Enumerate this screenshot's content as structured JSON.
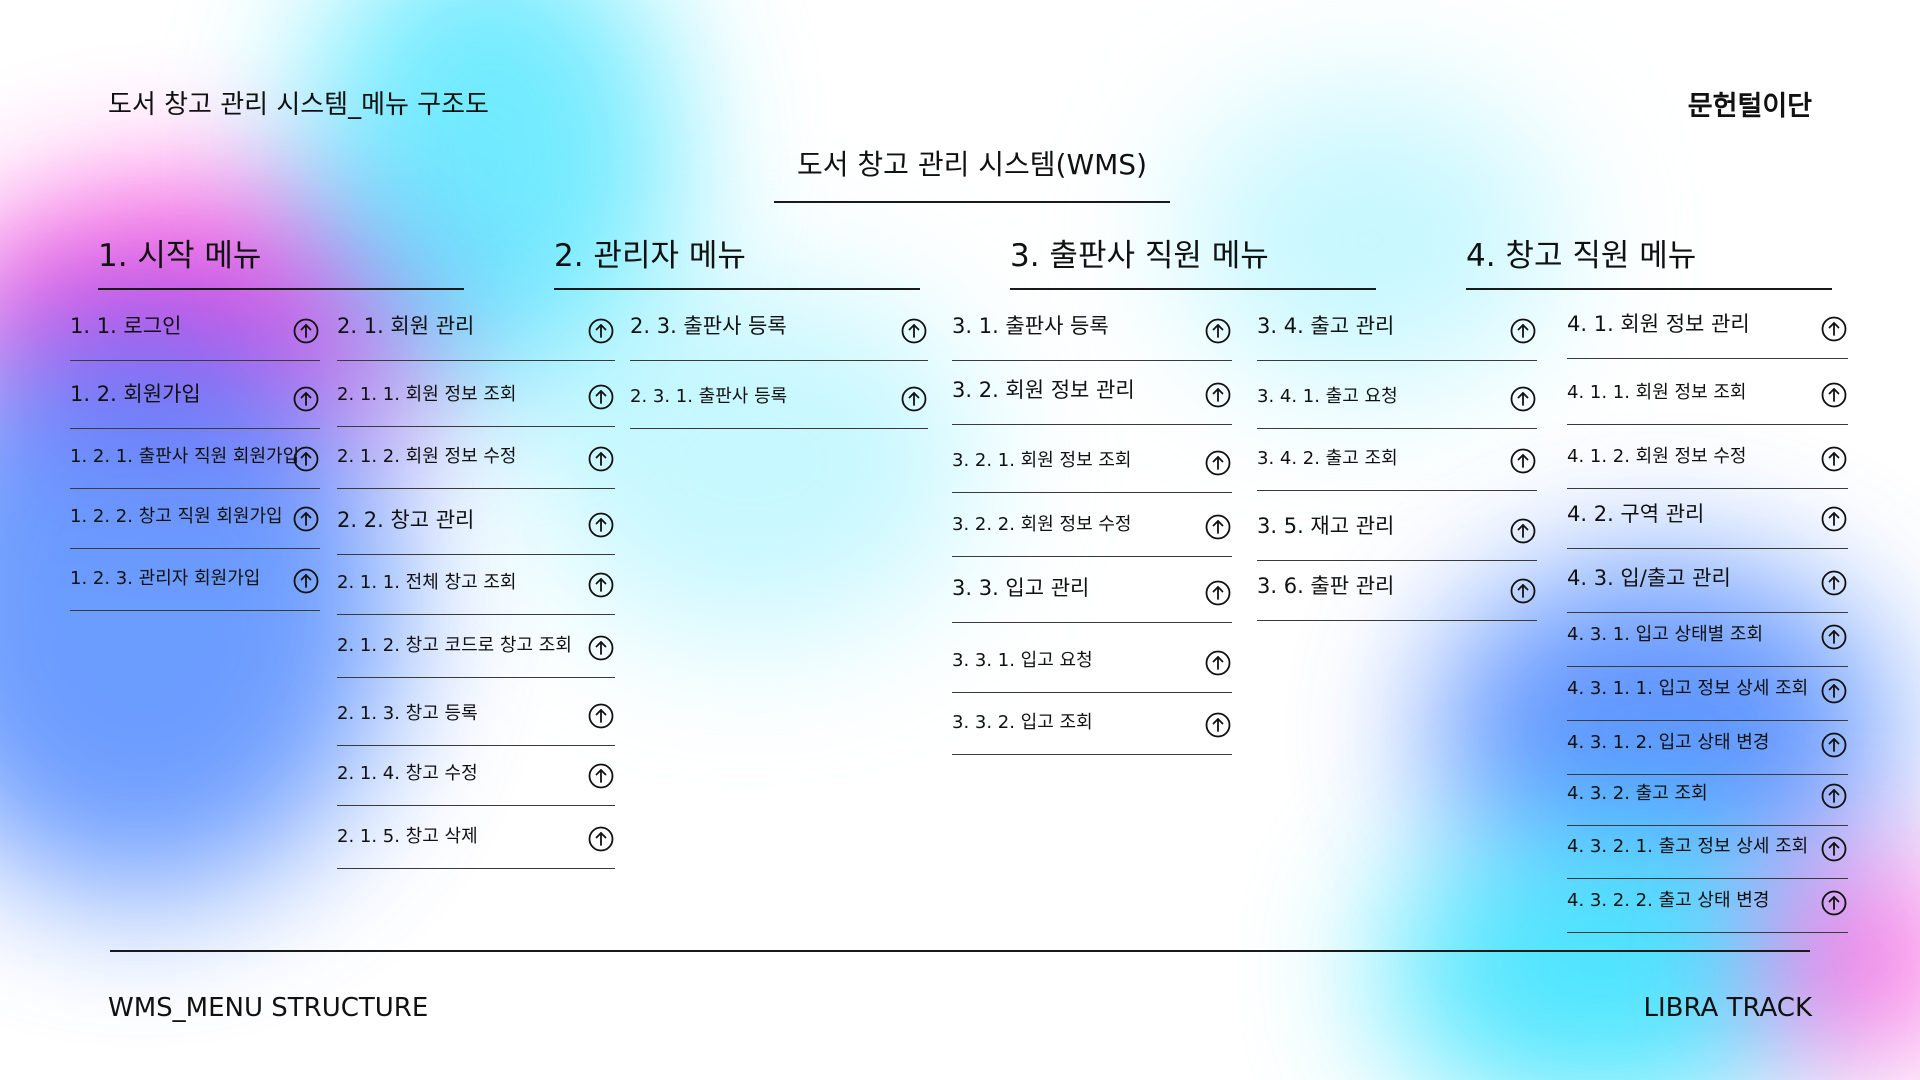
{
  "header": {
    "doc_title": "도서 창고 관리 시스템_메뉴 구조도",
    "team_name": "문헌털이단",
    "system_title": "도서 창고 관리 시스템(WMS)"
  },
  "sections": [
    {
      "title": "1. 시작 메뉴"
    },
    {
      "title": "2. 관리자 메뉴"
    },
    {
      "title": "3. 출판사 직원 메뉴"
    },
    {
      "title": "4. 창고 직원 메뉴"
    }
  ],
  "columns": [
    {
      "items": [
        {
          "label": "1. 1. 로그인"
        },
        {
          "label": "1. 2. 회원가입"
        },
        {
          "label": "1. 2. 1. 출판사 직원 회원가입"
        },
        {
          "label": "1. 2. 2. 창고 직원 회원가입"
        },
        {
          "label": "1. 2. 3. 관리자 회원가입"
        }
      ]
    },
    {
      "items": [
        {
          "label": "2. 1. 회원 관리"
        },
        {
          "label": "2. 1. 1. 회원 정보 조회"
        },
        {
          "label": "2. 1. 2. 회원 정보 수정"
        },
        {
          "label": "2. 2. 창고 관리"
        },
        {
          "label": "2. 1. 1. 전체 창고 조회"
        },
        {
          "label": "2. 1. 2. 창고 코드로 창고 조회"
        },
        {
          "label": "2. 1. 3. 창고 등록"
        },
        {
          "label": "2. 1. 4. 창고 수정"
        },
        {
          "label": "2. 1. 5. 창고 삭제"
        }
      ]
    },
    {
      "items": [
        {
          "label": "2. 3. 출판사 등록"
        },
        {
          "label": "2. 3. 1. 출판사 등록"
        }
      ]
    },
    {
      "items": [
        {
          "label": "3. 1. 출판사 등록"
        },
        {
          "label": "3. 2. 회원 정보 관리"
        },
        {
          "label": "3. 2. 1. 회원 정보 조회"
        },
        {
          "label": "3. 2. 2. 회원 정보 수정"
        },
        {
          "label": "3. 3. 입고 관리"
        },
        {
          "label": "3. 3. 1. 입고 요청"
        },
        {
          "label": "3. 3. 2. 입고 조회"
        }
      ]
    },
    {
      "items": [
        {
          "label": "3. 4. 출고 관리"
        },
        {
          "label": "3. 4. 1. 출고 요청"
        },
        {
          "label": "3. 4. 2. 출고 조회"
        },
        {
          "label": "3. 5. 재고 관리"
        },
        {
          "label": "3. 6. 출판 관리"
        }
      ]
    },
    {
      "items": [
        {
          "label": "4. 1. 회원 정보 관리"
        },
        {
          "label": "4. 1. 1. 회원 정보 조회"
        },
        {
          "label": "4. 1. 2. 회원 정보 수정"
        },
        {
          "label": "4. 2. 구역 관리"
        },
        {
          "label": "4. 3. 입/출고 관리"
        },
        {
          "label": "4. 3. 1. 입고 상태별 조회"
        },
        {
          "label": "4. 3. 1. 1. 입고 정보 상세 조회"
        },
        {
          "label": "4. 3. 1. 2. 입고 상태 변경"
        },
        {
          "label": "4. 3. 2. 출고 조회"
        },
        {
          "label": "4. 3. 2. 1. 출고 정보 상세 조회"
        },
        {
          "label": "4. 3. 2. 2. 출고 상태 변경"
        }
      ]
    }
  ],
  "footer": {
    "left_label": "WMS_MENU STRUCTURE",
    "right_label": "LIBRA TRACK"
  },
  "colors": {
    "magenta": "#ff2bd6",
    "cyan": "#26e0ff",
    "blue": "#3a7bff",
    "line": "#1a1a1a"
  },
  "icons": {
    "item_action": "circle-arrow-up-icon"
  }
}
